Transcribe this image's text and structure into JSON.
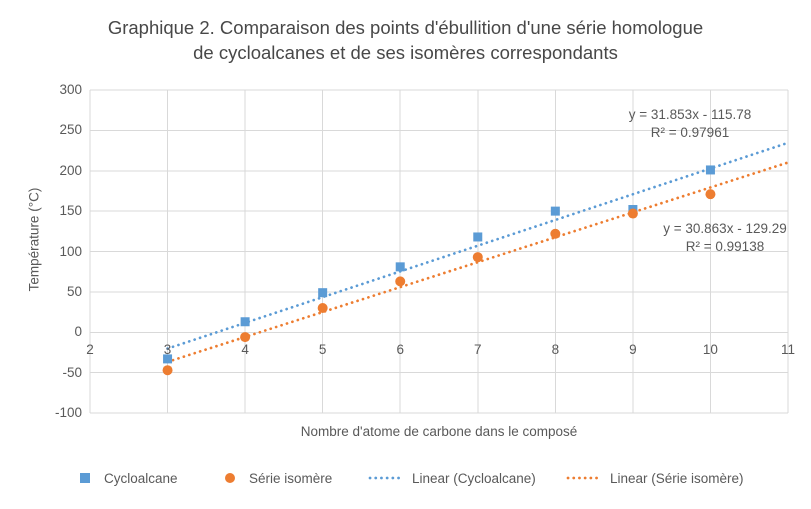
{
  "title_lines": [
    "Graphique 2. Comparaison des points d'ébullition d'une série homologue",
    "de cycloalcanes et de ses isomères correspondants"
  ],
  "colors": {
    "series_blue": "#5B9BD5",
    "series_orange": "#ED7D31",
    "gridline": "#D9D9D9",
    "text": "#595959",
    "title_text": "#484848"
  },
  "chart_data": {
    "type": "scatter",
    "title": "Graphique 2. Comparaison des points d'ébullition d'une série homologue de cycloalcanes et de ses isomères correspondants",
    "xlabel": "Nombre d'atome de carbone dans le composé",
    "ylabel": "Température (°C)",
    "xlim": [
      2,
      11
    ],
    "ylim": [
      -100,
      300
    ],
    "x_ticks": [
      2,
      3,
      4,
      5,
      6,
      7,
      8,
      9,
      10,
      11
    ],
    "y_ticks": [
      300,
      250,
      200,
      150,
      100,
      50,
      0,
      -50,
      -100
    ],
    "grid": true,
    "legend_position": "bottom",
    "x": [
      3,
      4,
      5,
      6,
      7,
      8,
      9,
      10
    ],
    "series": [
      {
        "name": "Cycloalcane",
        "marker": "square",
        "color": "#5B9BD5",
        "values": [
          -33,
          13,
          49,
          81,
          118,
          150,
          152,
          201
        ]
      },
      {
        "name": "Série isomère",
        "marker": "circle",
        "color": "#ED7D31",
        "values": [
          -47,
          -6,
          30,
          63,
          93,
          122,
          147,
          171
        ]
      }
    ],
    "trendlines": [
      {
        "name": "Linear (Cycloalcane)",
        "color": "#5B9BD5",
        "style": "dotted",
        "slope": 31.853,
        "intercept": -115.78,
        "x_range": [
          3,
          11
        ],
        "equation": "y = 31.853x - 115.78",
        "r2_label": "R² = 0.97961"
      },
      {
        "name": "Linear (Série isomère)",
        "color": "#ED7D31",
        "style": "dotted",
        "slope": 30.863,
        "intercept": -129.29,
        "x_range": [
          3,
          11
        ],
        "equation": "y = 30.863x - 129.29",
        "r2_label": "R² = 0.99138"
      }
    ]
  },
  "legend": {
    "items": [
      {
        "label": "Cycloalcane",
        "marker": "square",
        "color": "#5B9BD5"
      },
      {
        "label": "Série isomère",
        "marker": "circle",
        "color": "#ED7D31"
      },
      {
        "label": "Linear (Cycloalcane)",
        "marker": "dotted-line",
        "color": "#5B9BD5"
      },
      {
        "label": "Linear (Série isomère)",
        "marker": "dotted-line",
        "color": "#ED7D31"
      }
    ]
  }
}
